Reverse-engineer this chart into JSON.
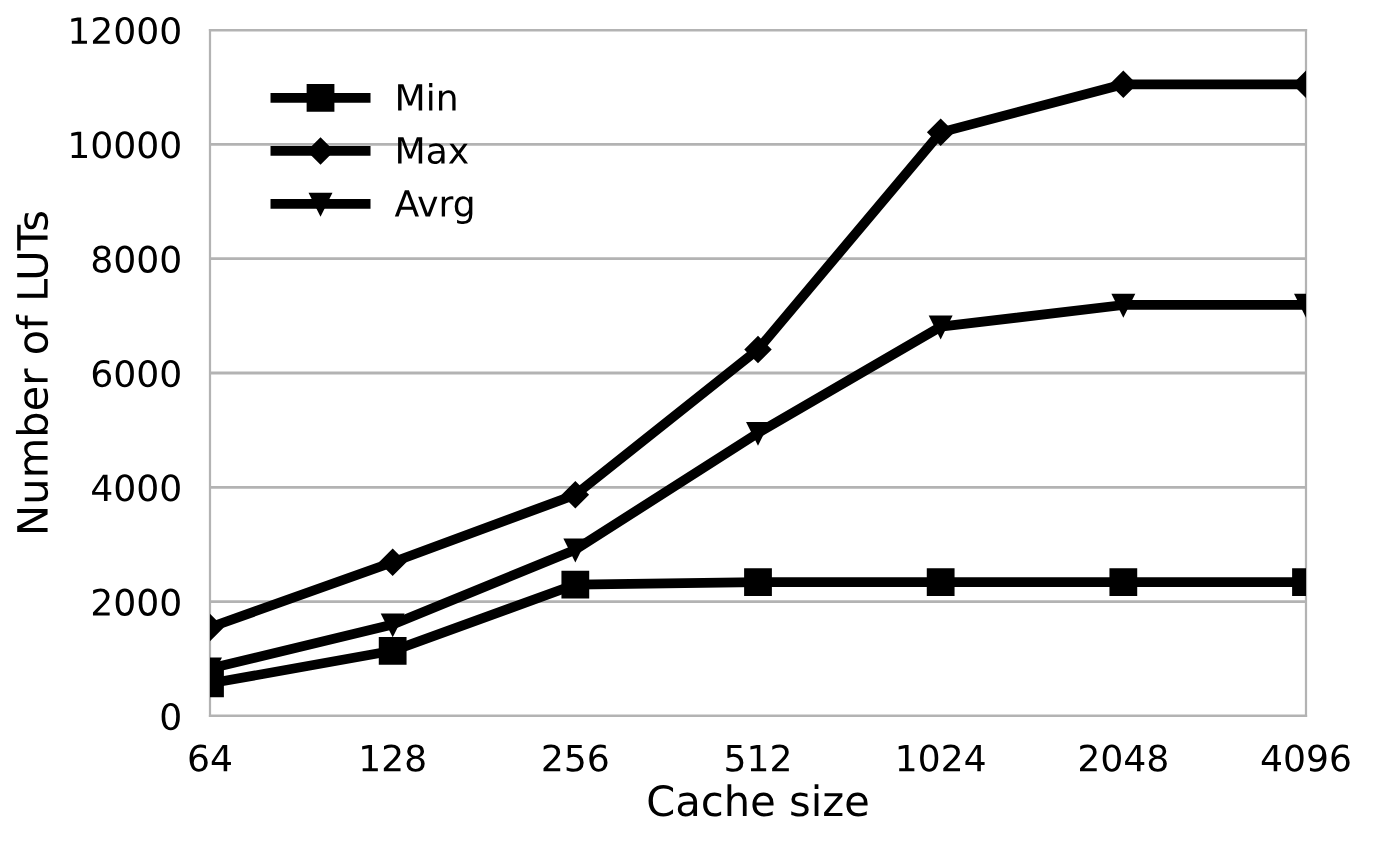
{
  "chart_data": {
    "type": "line",
    "xlabel": "Cache size",
    "ylabel": "Number of LUTs",
    "categories": [
      "64",
      "128",
      "256",
      "512",
      "1024",
      "2048",
      "4096"
    ],
    "series": [
      {
        "name": "Min",
        "color": "#000000",
        "marker": "square",
        "values": [
          570,
          1140,
          2300,
          2340,
          2340,
          2340,
          2340
        ]
      },
      {
        "name": "Max",
        "color": "#000000",
        "marker": "diamond",
        "values": [
          1550,
          2690,
          3870,
          6410,
          10210,
          11050,
          11050
        ]
      },
      {
        "name": "Avrg",
        "color": "#000000",
        "marker": "triangle",
        "values": [
          830,
          1600,
          2910,
          4950,
          6810,
          7190,
          7190
        ]
      }
    ],
    "ylim": [
      0,
      12000
    ],
    "yticks": [
      0,
      2000,
      4000,
      6000,
      8000,
      10000,
      12000
    ],
    "grid": "y",
    "legend": "top left",
    "line_style": "solid"
  }
}
